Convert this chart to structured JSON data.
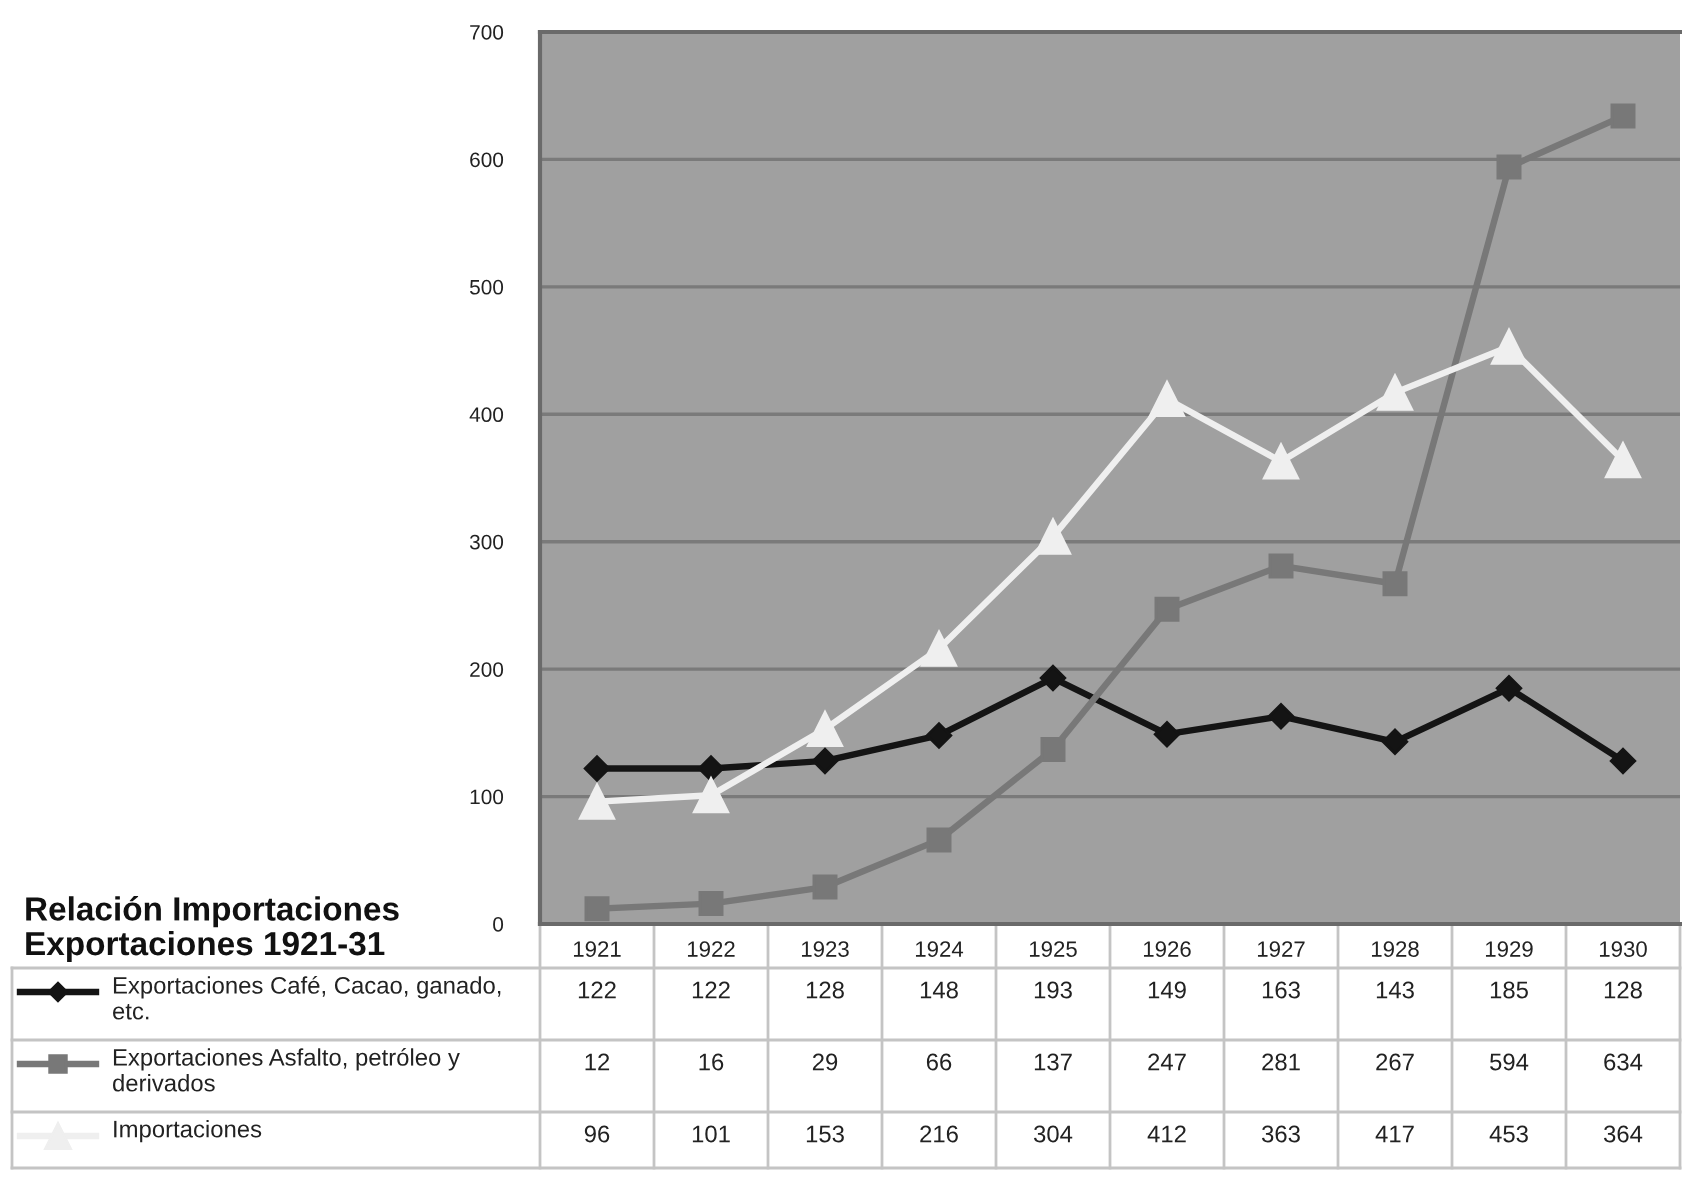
{
  "chart_data": {
    "type": "line",
    "title": "Relación Importaciones Exportaciones 1921-31",
    "categories": [
      "1921",
      "1922",
      "1923",
      "1924",
      "1925",
      "1926",
      "1927",
      "1928",
      "1929",
      "1930"
    ],
    "series": [
      {
        "name": "Exportaciones Café, Cacao, ganado, etc.",
        "color": "#141414",
        "marker": "diamond",
        "values": [
          122,
          122,
          128,
          148,
          193,
          149,
          163,
          143,
          185,
          128
        ]
      },
      {
        "name": "Exportaciones Asfalto, petróleo y derivados",
        "color": "#787878",
        "marker": "square",
        "values": [
          12,
          16,
          29,
          66,
          137,
          247,
          281,
          267,
          594,
          634
        ]
      },
      {
        "name": "Importaciones",
        "color": "#efefef",
        "marker": "triangle",
        "values": [
          96,
          101,
          153,
          216,
          304,
          412,
          363,
          417,
          453,
          364
        ]
      }
    ],
    "ylim": [
      0,
      700
    ],
    "yticks": [
      0,
      100,
      200,
      300,
      400,
      500,
      600,
      700
    ],
    "grid": "y",
    "legend": "bottom left",
    "data_labels": true,
    "line_style": "solid"
  }
}
